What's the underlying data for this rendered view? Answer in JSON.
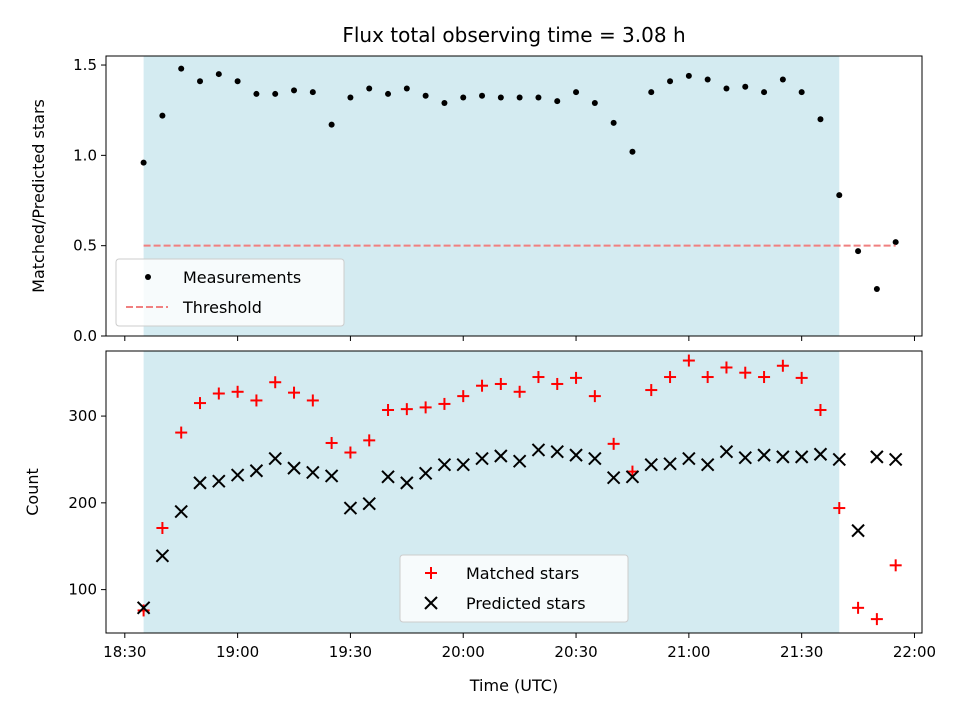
{
  "chart_data": [
    {
      "type": "scatter",
      "title": "Flux total observing time = 3.08 h",
      "xlabel": "",
      "ylabel": "Matched/Predicted stars",
      "xlim": [
        "18:25",
        "22:02"
      ],
      "ylim": [
        0,
        1.55
      ],
      "yticks": [
        "0.0",
        "0.5",
        "1.0",
        "1.5"
      ],
      "shaded_region": {
        "x0": "18:35",
        "x1": "21:40",
        "color": "#d4ebf1"
      },
      "legend_position": "lower-left",
      "series": [
        {
          "name": "Measurements",
          "marker": "dot",
          "color": "#000000",
          "x": [
            "18:35",
            "18:40",
            "18:45",
            "18:50",
            "18:55",
            "19:00",
            "19:05",
            "19:10",
            "19:15",
            "19:20",
            "19:25",
            "19:30",
            "19:35",
            "19:40",
            "19:45",
            "19:50",
            "19:55",
            "20:00",
            "20:05",
            "20:10",
            "20:15",
            "20:20",
            "20:25",
            "20:30",
            "20:35",
            "20:40",
            "20:45",
            "20:50",
            "20:55",
            "21:00",
            "21:05",
            "21:10",
            "21:15",
            "21:20",
            "21:25",
            "21:30",
            "21:35",
            "21:40",
            "21:45",
            "21:50",
            "21:55"
          ],
          "y": [
            0.96,
            1.22,
            1.48,
            1.41,
            1.45,
            1.41,
            1.34,
            1.34,
            1.36,
            1.35,
            1.17,
            1.32,
            1.37,
            1.34,
            1.37,
            1.33,
            1.29,
            1.32,
            1.33,
            1.32,
            1.32,
            1.32,
            1.3,
            1.35,
            1.29,
            1.18,
            1.02,
            1.35,
            1.41,
            1.44,
            1.42,
            1.37,
            1.38,
            1.35,
            1.42,
            1.35,
            1.2,
            0.78,
            0.47,
            0.26,
            0.52
          ]
        },
        {
          "name": "Threshold",
          "line_style": "dashed",
          "color": "#f08080",
          "x": [
            "18:35",
            "21:55"
          ],
          "y": [
            0.5,
            0.5
          ]
        }
      ]
    },
    {
      "type": "scatter",
      "title": "",
      "xlabel": "Time (UTC)",
      "ylabel": "Count",
      "xlim": [
        "18:25",
        "22:02"
      ],
      "ylim": [
        50,
        375
      ],
      "yticks": [
        "100",
        "200",
        "300"
      ],
      "xticks": [
        "18:30",
        "19:00",
        "19:30",
        "20:00",
        "20:30",
        "21:00",
        "21:30",
        "22:00"
      ],
      "shaded_region": {
        "x0": "18:35",
        "x1": "21:40",
        "color": "#d4ebf1"
      },
      "legend_position": "lower-center",
      "series": [
        {
          "name": "Matched stars",
          "marker": "plus",
          "color": "#ff0000",
          "x": [
            "18:35",
            "18:40",
            "18:45",
            "18:50",
            "18:55",
            "19:00",
            "19:05",
            "19:10",
            "19:15",
            "19:20",
            "19:25",
            "19:30",
            "19:35",
            "19:40",
            "19:45",
            "19:50",
            "19:55",
            "20:00",
            "20:05",
            "20:10",
            "20:15",
            "20:20",
            "20:25",
            "20:30",
            "20:35",
            "20:40",
            "20:45",
            "20:50",
            "20:55",
            "21:00",
            "21:05",
            "21:10",
            "21:15",
            "21:20",
            "21:25",
            "21:30",
            "21:35",
            "21:40",
            "21:45",
            "21:50",
            "21:55"
          ],
          "y": [
            76,
            171,
            281,
            315,
            326,
            328,
            318,
            339,
            327,
            318,
            269,
            258,
            272,
            307,
            308,
            310,
            314,
            323,
            335,
            337,
            328,
            345,
            337,
            344,
            323,
            268,
            236,
            330,
            345,
            364,
            345,
            356,
            350,
            345,
            358,
            344,
            307,
            194,
            79,
            66,
            128
          ]
        },
        {
          "name": "Predicted stars",
          "marker": "x",
          "color": "#000000",
          "x": [
            "18:35",
            "18:40",
            "18:45",
            "18:50",
            "18:55",
            "19:00",
            "19:05",
            "19:10",
            "19:15",
            "19:20",
            "19:25",
            "19:30",
            "19:35",
            "19:40",
            "19:45",
            "19:50",
            "19:55",
            "20:00",
            "20:05",
            "20:10",
            "20:15",
            "20:20",
            "20:25",
            "20:30",
            "20:35",
            "20:40",
            "20:45",
            "20:50",
            "20:55",
            "21:00",
            "21:05",
            "21:10",
            "21:15",
            "21:20",
            "21:25",
            "21:30",
            "21:35",
            "21:40",
            "21:45",
            "21:50",
            "21:55"
          ],
          "y": [
            79,
            139,
            190,
            223,
            225,
            232,
            237,
            251,
            240,
            235,
            231,
            194,
            199,
            230,
            223,
            234,
            244,
            244,
            251,
            254,
            248,
            261,
            259,
            255,
            251,
            229,
            230,
            244,
            245,
            251,
            244,
            259,
            252,
            255,
            253,
            253,
            256,
            250,
            168,
            253,
            250
          ]
        }
      ]
    }
  ]
}
